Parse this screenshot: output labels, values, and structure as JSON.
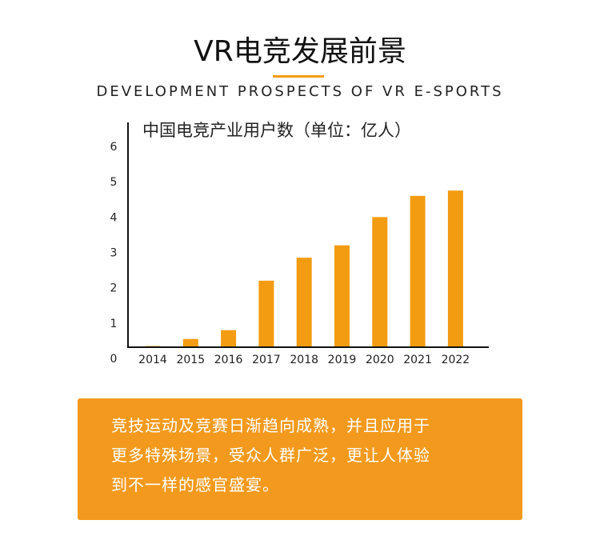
{
  "header": {
    "title": "VR电竞发展前景",
    "subtitle": "DEVELOPMENT PROSPECTS OF VR E-SPORTS"
  },
  "colors": {
    "accent": "#f39c12",
    "bar": "#f39c12",
    "box": "#f39a1e"
  },
  "chart_data": {
    "type": "bar",
    "title": "中国电竞产业用户数（单位：亿人）",
    "categories": [
      "2014",
      "2015",
      "2016",
      "2017",
      "2018",
      "2019",
      "2020",
      "2021",
      "2022"
    ],
    "values": [
      0.35,
      0.55,
      0.8,
      2.2,
      2.85,
      3.2,
      4.0,
      4.6,
      4.75
    ],
    "ylim": [
      0,
      6
    ],
    "yticks": [
      "0",
      "1",
      "2",
      "3",
      "4",
      "5",
      "6"
    ],
    "grid": false,
    "xlabel": "",
    "ylabel": ""
  },
  "info": {
    "lines": [
      "竞技运动及竞赛日渐趋向成熟，并且应用于",
      "更多特殊场景，受众人群广泛，更让人体验",
      "到不一样的感官盛宴。"
    ]
  }
}
